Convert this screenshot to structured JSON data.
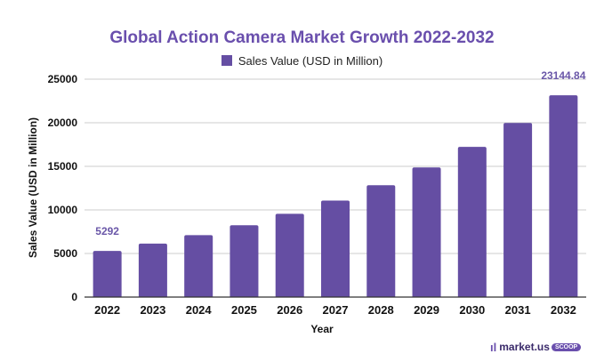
{
  "chart_data": {
    "type": "bar",
    "title": "Global Action Camera Market Growth 2022-2032",
    "legend": {
      "entries": [
        "Sales Value (USD in Million)"
      ],
      "placement": "top-center"
    },
    "xlabel": "Year",
    "ylabel": "Sales Value (USD in Million)",
    "categories": [
      "2022",
      "2023",
      "2024",
      "2025",
      "2026",
      "2027",
      "2028",
      "2029",
      "2030",
      "2031",
      "2032"
    ],
    "series": [
      {
        "name": "Sales Value (USD in Million)",
        "color": "#654ea3",
        "values": [
          5292,
          6134,
          7109,
          8240,
          9550,
          11068,
          12828,
          14867,
          17231,
          19970,
          23144.84
        ]
      }
    ],
    "data_labels": [
      {
        "category": "2022",
        "text": "5292"
      },
      {
        "category": "2032",
        "text": "23144.84"
      }
    ],
    "ylim": [
      0,
      25000
    ],
    "yticks": [
      0,
      5000,
      10000,
      15000,
      20000,
      25000
    ],
    "grid": true
  },
  "branding": {
    "logo_mark": "ıl",
    "logo_name": "market.us",
    "logo_badge": "SCOOP"
  }
}
